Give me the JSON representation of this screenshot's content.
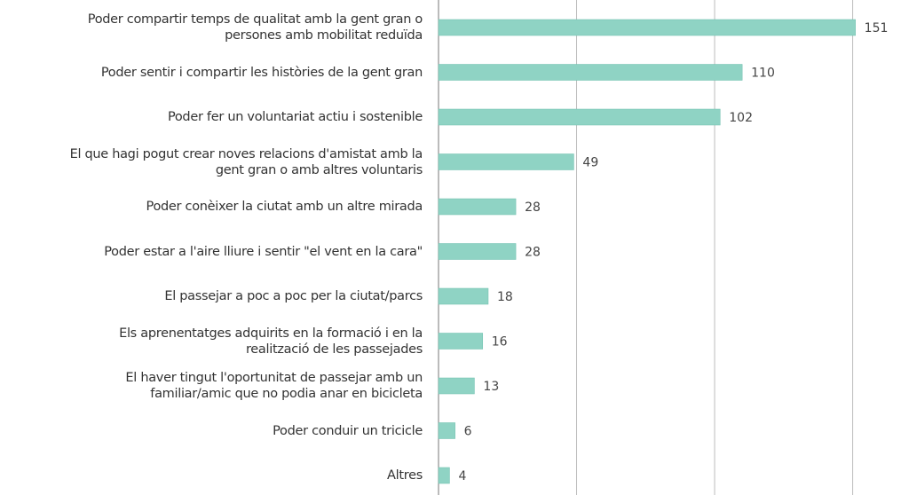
{
  "chart_data": {
    "type": "barh",
    "categories": [
      "Poder compartir temps de qualitat amb la gent gran o\npersones amb mobilitat reduïda",
      "Poder sentir i compartir les històries de la gent gran",
      "Poder fer un voluntariat actiu i sostenible",
      "El que hagi pogut crear noves relacions d'amistat amb la\ngent gran o amb altres voluntaris",
      "Poder conèixer la ciutat amb un altre mirada",
      "Poder estar a l'aire lliure i sentir \"el vent en la cara\"",
      "El passejar a poc a poc per la ciutat/parcs",
      "Els aprenentatges adquirits en la formació i en la\nrealització de les passejades",
      "El haver tingut l'oportunitat de passejar amb un\nfamiliar/amic que no podia anar en bicicleta",
      "Poder conduir un tricicle",
      "Altres"
    ],
    "values": [
      151,
      110,
      102,
      49,
      28,
      28,
      18,
      16,
      13,
      6,
      4
    ],
    "color": "#8fd3c4",
    "xlim": [
      0,
      167.5
    ],
    "xticks": [
      0,
      50,
      100,
      150
    ],
    "grid": true
  }
}
